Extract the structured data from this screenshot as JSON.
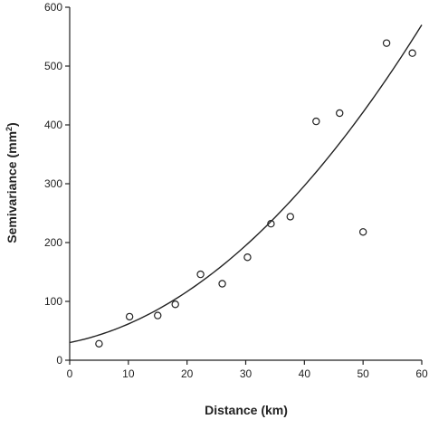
{
  "chart_data": {
    "type": "scatter",
    "title": "",
    "xlabel": "Distance (km)",
    "ylabel": "Semivariance (mm2)",
    "ylabel_main": "Semivariance (mm",
    "ylabel_sup": "2",
    "ylabel_close": ")",
    "xlim": [
      0,
      60
    ],
    "ylim": [
      0,
      600
    ],
    "x_ticks": [
      "0",
      "10",
      "20",
      "30",
      "40",
      "50",
      "60"
    ],
    "y_ticks": [
      "0",
      "100",
      "200",
      "300",
      "400",
      "500",
      "600"
    ],
    "grid": false,
    "legend": "none",
    "series": [
      {
        "values": [
          {
            "x": 5,
            "y": 28
          },
          {
            "x": 10.2,
            "y": 74
          },
          {
            "x": 15,
            "y": 76
          },
          {
            "x": 18,
            "y": 95
          },
          {
            "x": 22.3,
            "y": 146
          },
          {
            "x": 26,
            "y": 130
          },
          {
            "x": 30.3,
            "y": 175
          },
          {
            "x": 34.3,
            "y": 232
          },
          {
            "x": 37.6,
            "y": 244
          },
          {
            "x": 42,
            "y": 406
          },
          {
            "x": 46,
            "y": 420
          },
          {
            "x": 50,
            "y": 218
          },
          {
            "x": 54,
            "y": 539
          },
          {
            "x": 58.4,
            "y": 522
          }
        ]
      }
    ],
    "fit_curve": {
      "type": "quadratic",
      "x": [
        0,
        10,
        20,
        30,
        40,
        50,
        60
      ],
      "y": [
        30,
        50,
        105,
        195,
        310,
        435,
        570
      ]
    }
  },
  "colors": {
    "ink": "#222222",
    "background": "#ffffff"
  }
}
